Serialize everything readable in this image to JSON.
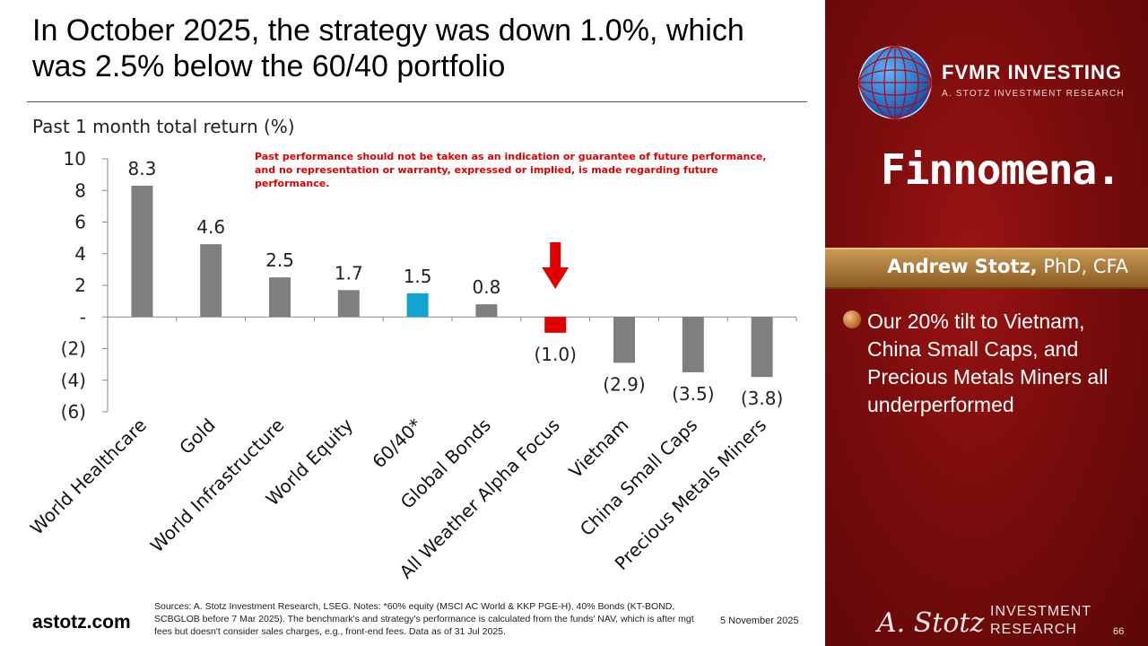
{
  "slide": {
    "title": "In October 2025, the strategy was down 1.0%, which was 2.5% below the 60/40 portfolio",
    "disclaimer": "Past performance should not be taken as an indication or guarantee of future performance, and no representation or warranty, expressed or implied, is made regarding future performance.",
    "site": "astotz.com",
    "notes": "Sources: A. Stotz Investment Research, LSEG. Notes: *60% equity (MSCI AC World & KKP PGE-H), 40% Bonds (KT-BOND, SCBGLOB before 7 Mar 2025). The benchmark's and strategy's performance is calculated from the funds' NAV, which is after mgt fees but doesn't consider sales charges, e.g., front-end fees. Data as of 31 Jul 2025.",
    "date": "5 November 2025",
    "page_number": "66"
  },
  "panel": {
    "fvmr_name": "FVMR INVESTING",
    "fvmr_sub": "A. STOTZ INVESTMENT RESEARCH",
    "finnomena": "Finnomena.",
    "presenter_name": "Andrew Stotz,",
    "presenter_credentials": " PhD, CFA",
    "bullet": "Our 20% tilt to Vietnam, China Small Caps, and Precious Metals Miners all underperformed",
    "signature": "A. Stotz",
    "brand_line1": "INVESTMENT",
    "brand_line2": "RESEARCH"
  },
  "colors": {
    "bar_default": "#7f7f7f",
    "bar_benchmark": "#12a3d0",
    "bar_strategy": "#e00000",
    "arrow": "#e00000"
  },
  "chart_data": {
    "type": "bar",
    "title": "Past 1 month total return (%)",
    "categories": [
      "World Healthcare",
      "Gold",
      "World Infrastructure",
      "World Equity",
      "60/40*",
      "Global Bonds",
      "All Weather Alpha Focus",
      "Vietnam",
      "China Small Caps",
      "Precious Metals Miners"
    ],
    "values": [
      8.3,
      4.6,
      2.5,
      1.7,
      1.5,
      0.8,
      -1.0,
      -2.9,
      -3.5,
      -3.8
    ],
    "value_labels": [
      "8.3",
      "4.6",
      "2.5",
      "1.7",
      "1.5",
      "0.8",
      "(1.0)",
      "(2.9)",
      "(3.5)",
      "(3.8)"
    ],
    "highlight": {
      "benchmark_index": 4,
      "strategy_index": 6
    },
    "ylim": [
      -6,
      10
    ],
    "yticks": [
      10,
      8,
      6,
      4,
      2,
      0,
      -2,
      -4,
      -6
    ],
    "ytick_labels": [
      "10",
      "8",
      "6",
      "4",
      "2",
      "-",
      "(2)",
      "(4)",
      "(6)"
    ],
    "xlabel": "",
    "ylabel": "",
    "grid": false,
    "legend": "none"
  }
}
